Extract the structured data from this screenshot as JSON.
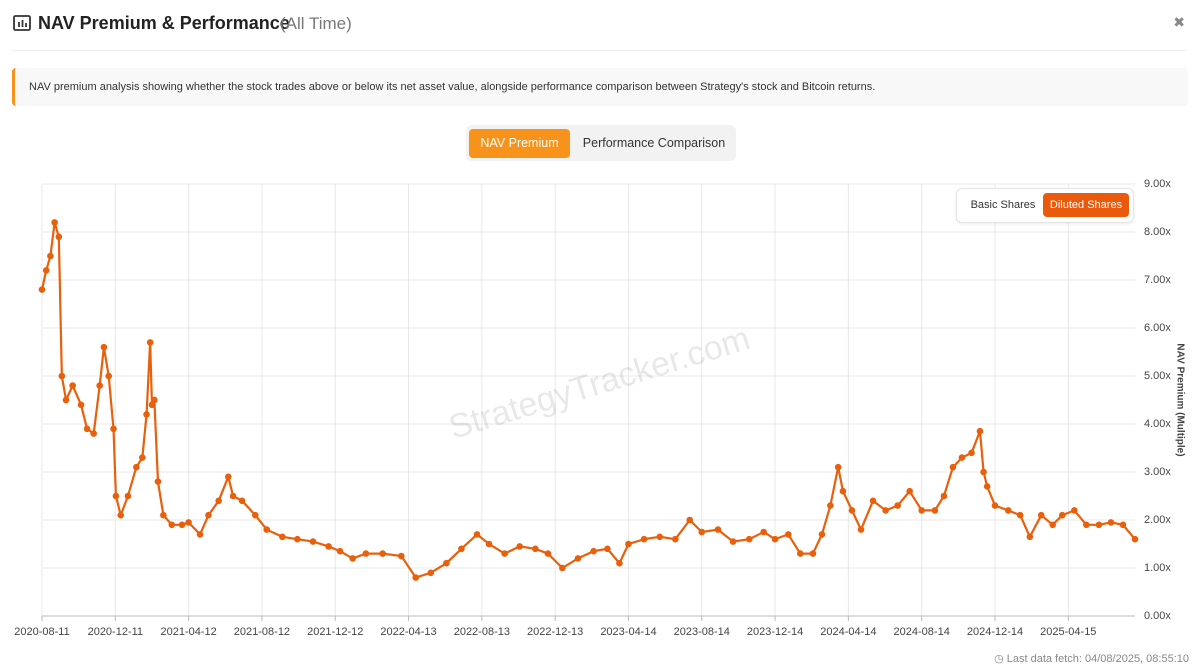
{
  "header": {
    "title": "NAV Premium & Performance",
    "subtitle": "(All Time)",
    "close": "✖"
  },
  "info": "NAV premium analysis showing whether the stock trades above or below its net asset value, alongside performance comparison between Strategy's stock and Bitcoin returns.",
  "tabs": [
    "NAV Premium",
    "Performance Comparison"
  ],
  "toggle": [
    "Basic Shares",
    "Diluted Shares"
  ],
  "watermark": "StrategyTracker.com",
  "footer": "Last data fetch: 04/08/2025, 08:55:10",
  "chart_data": {
    "type": "line",
    "y_label": "NAV Premium (Multiple)",
    "grid": true,
    "xlim": [
      "2020-08-11",
      "2025-08-04"
    ],
    "xticks": [
      "2020-08-11",
      "2020-12-11",
      "2021-04-12",
      "2021-08-12",
      "2021-12-12",
      "2022-04-13",
      "2022-08-13",
      "2022-12-13",
      "2023-04-14",
      "2023-08-14",
      "2023-12-14",
      "2024-04-14",
      "2024-08-14",
      "2024-12-14",
      "2025-04-15"
    ],
    "ylim": [
      0,
      9
    ],
    "yticks": [
      {
        "value": 0,
        "label": "0.00x"
      },
      {
        "value": 1,
        "label": "1.00x"
      },
      {
        "value": 2,
        "label": "2.00x"
      },
      {
        "value": 3,
        "label": "3.00x"
      },
      {
        "value": 4,
        "label": "4.00x"
      },
      {
        "value": 5,
        "label": "5.00x"
      },
      {
        "value": 6,
        "label": "6.00x"
      },
      {
        "value": 7,
        "label": "7.00x"
      },
      {
        "value": 8,
        "label": "8.00x"
      },
      {
        "value": 9,
        "label": "9.00x"
      }
    ],
    "x": [
      "2020-08-11",
      "2020-08-18",
      "2020-08-25",
      "2020-09-01",
      "2020-09-08",
      "2020-09-13",
      "2020-09-20",
      "2020-10-01",
      "2020-10-15",
      "2020-10-25",
      "2020-11-05",
      "2020-11-15",
      "2020-11-22",
      "2020-11-30",
      "2020-12-08",
      "2020-12-12",
      "2020-12-20",
      "2021-01-01",
      "2021-01-15",
      "2021-01-25",
      "2021-02-01",
      "2021-02-07",
      "2021-02-10",
      "2021-02-14",
      "2021-02-20",
      "2021-03-01",
      "2021-03-15",
      "2021-04-01",
      "2021-04-12",
      "2021-05-01",
      "2021-05-15",
      "2021-06-01",
      "2021-06-17",
      "2021-06-25",
      "2021-07-10",
      "2021-08-01",
      "2021-08-20",
      "2021-09-15",
      "2021-10-10",
      "2021-11-05",
      "2021-12-01",
      "2021-12-20",
      "2022-01-10",
      "2022-02-01",
      "2022-03-01",
      "2022-04-01",
      "2022-04-25",
      "2022-05-20",
      "2022-06-15",
      "2022-07-10",
      "2022-08-05",
      "2022-08-25",
      "2022-09-20",
      "2022-10-15",
      "2022-11-10",
      "2022-12-01",
      "2022-12-25",
      "2023-01-20",
      "2023-02-15",
      "2023-03-10",
      "2023-03-30",
      "2023-04-14",
      "2023-05-10",
      "2023-06-05",
      "2023-07-01",
      "2023-07-25",
      "2023-08-14",
      "2023-09-10",
      "2023-10-05",
      "2023-11-01",
      "2023-11-25",
      "2023-12-14",
      "2024-01-05",
      "2024-01-25",
      "2024-02-15",
      "2024-03-01",
      "2024-03-15",
      "2024-03-28",
      "2024-04-05",
      "2024-04-20",
      "2024-05-05",
      "2024-05-25",
      "2024-06-15",
      "2024-07-05",
      "2024-07-25",
      "2024-08-14",
      "2024-09-05",
      "2024-09-20",
      "2024-10-05",
      "2024-10-20",
      "2024-11-05",
      "2024-11-19",
      "2024-11-25",
      "2024-12-01",
      "2024-12-14",
      "2025-01-05",
      "2025-01-25",
      "2025-02-10",
      "2025-03-01",
      "2025-03-20",
      "2025-04-05",
      "2025-04-25",
      "2025-05-15",
      "2025-06-05",
      "2025-06-25",
      "2025-07-15",
      "2025-08-04"
    ],
    "series": [
      {
        "name": "NAV Premium",
        "color": "#e8600c",
        "values": [
          6.8,
          7.2,
          7.5,
          8.2,
          7.9,
          5.0,
          4.5,
          4.8,
          4.4,
          3.9,
          3.8,
          4.8,
          5.6,
          5.0,
          3.9,
          2.5,
          2.1,
          2.5,
          3.1,
          3.3,
          4.2,
          5.7,
          4.4,
          4.5,
          2.8,
          2.1,
          1.9,
          1.9,
          1.95,
          1.7,
          2.1,
          2.4,
          2.9,
          2.5,
          2.4,
          2.1,
          1.8,
          1.65,
          1.6,
          1.55,
          1.45,
          1.35,
          1.2,
          1.3,
          1.3,
          1.25,
          0.8,
          0.9,
          1.1,
          1.4,
          1.7,
          1.5,
          1.3,
          1.45,
          1.4,
          1.3,
          1.0,
          1.2,
          1.35,
          1.4,
          1.1,
          1.5,
          1.6,
          1.65,
          1.6,
          2.0,
          1.75,
          1.8,
          1.55,
          1.6,
          1.75,
          1.6,
          1.7,
          1.3,
          1.3,
          1.7,
          2.3,
          3.1,
          2.6,
          2.2,
          1.8,
          2.4,
          2.2,
          2.3,
          2.6,
          2.2,
          2.2,
          2.5,
          3.1,
          3.3,
          3.4,
          3.85,
          3.0,
          2.7,
          2.3,
          2.2,
          2.1,
          1.65,
          2.1,
          1.9,
          2.1,
          2.2,
          1.9,
          1.9,
          1.95,
          1.9,
          1.6
        ]
      }
    ]
  }
}
